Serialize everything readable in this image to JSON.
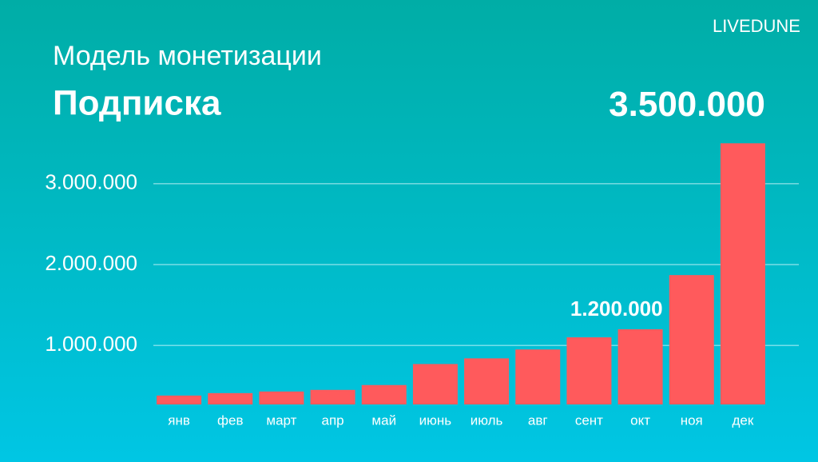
{
  "brand": "LIVEDUNE",
  "chart_data": {
    "type": "bar",
    "title": "Модель монетизации",
    "subtitle": "Подписка",
    "categories": [
      "янв",
      "фев",
      "март",
      "апр",
      "май",
      "июнь",
      "июль",
      "авг",
      "сент",
      "окт",
      "ноя",
      "дек"
    ],
    "values": [
      380000,
      410000,
      430000,
      450000,
      510000,
      770000,
      840000,
      950000,
      1100000,
      1200000,
      1870000,
      3500000
    ],
    "value_labels": [
      null,
      null,
      null,
      null,
      null,
      null,
      null,
      null,
      null,
      "1.200.000",
      null,
      "3.500.000"
    ],
    "color": "#ff5a5c",
    "ylim": [
      270000,
      3750000
    ],
    "yticks": [
      {
        "value": 1000000,
        "label": "1.000.000"
      },
      {
        "value": 2000000,
        "label": "2.000.000"
      },
      {
        "value": 3000000,
        "label": "3.000.000"
      }
    ],
    "grid": true
  }
}
